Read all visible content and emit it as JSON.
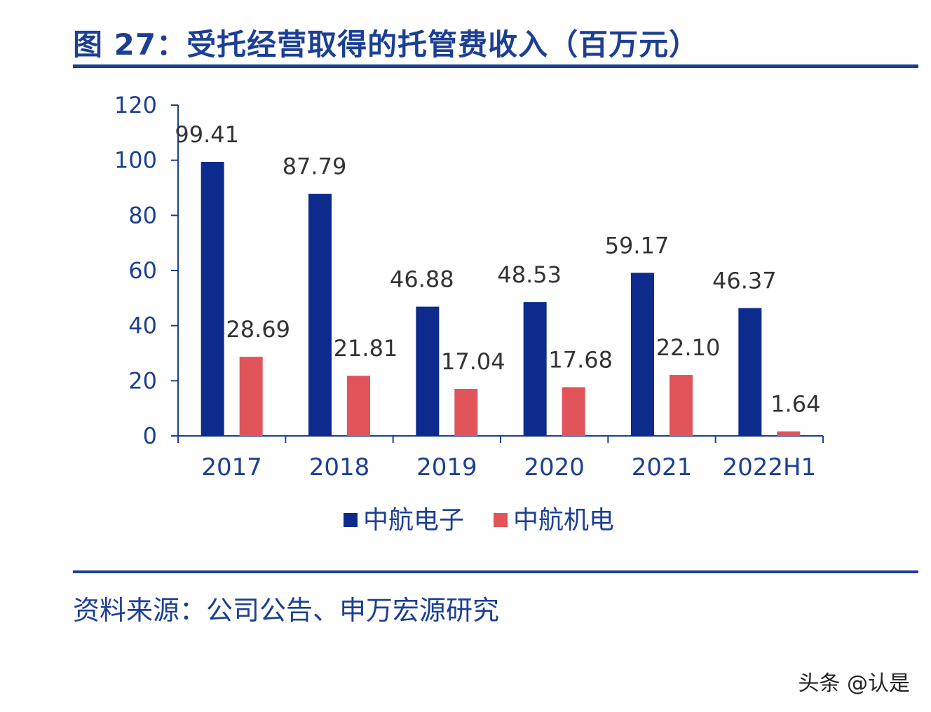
{
  "title": "图 27：受托经营取得的托管费收入（百万元）",
  "source": "资料来源：公司公告、申万宏源研究",
  "watermark": "头条 @认是",
  "colors": {
    "accent": "#1c3f94",
    "series_1": "#0c2b8c",
    "series_2": "#e0545a"
  },
  "chart_data": {
    "type": "bar",
    "categories": [
      "2017",
      "2018",
      "2019",
      "2020",
      "2021",
      "2022H1"
    ],
    "series": [
      {
        "name": "中航电子",
        "values": [
          99.41,
          87.79,
          46.88,
          48.53,
          59.17,
          46.37
        ],
        "labels": [
          "99.41",
          "87.79",
          "46.88",
          "48.53",
          "59.17",
          "46.37"
        ]
      },
      {
        "name": "中航机电",
        "values": [
          28.69,
          21.81,
          17.04,
          17.68,
          22.1,
          1.64
        ],
        "labels": [
          "28.69",
          "21.81",
          "17.04",
          "17.68",
          "22.10",
          "1.64"
        ]
      }
    ],
    "ylim": [
      0,
      120
    ],
    "yticks": [
      0,
      20,
      40,
      60,
      80,
      100,
      120
    ],
    "grid": false,
    "legend": "bottom",
    "xlabel": "",
    "ylabel": ""
  }
}
